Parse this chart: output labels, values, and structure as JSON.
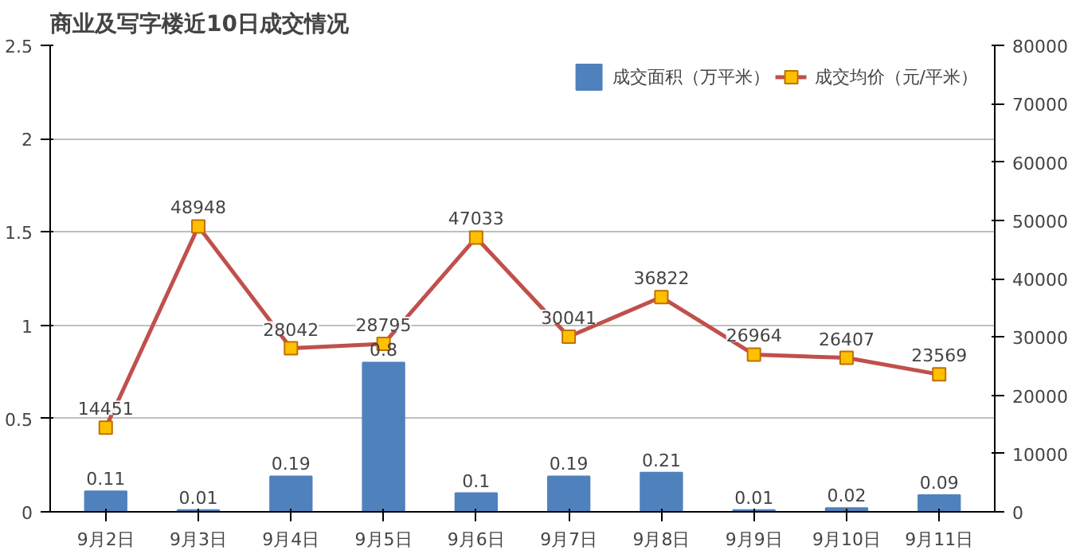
{
  "chart_data": {
    "type": "bar",
    "title": "商业及写字楼近10日成交情况",
    "categories": [
      "9月2日",
      "9月3日",
      "9月4日",
      "9月5日",
      "9月6日",
      "9月7日",
      "9月8日",
      "9月9日",
      "9月10日",
      "9月11日"
    ],
    "series": [
      {
        "name": "成交面积（万平米）",
        "color": "#4f81bd",
        "values": [
          0.11,
          0.01,
          0.19,
          0.8,
          0.1,
          0.19,
          0.21,
          0.01,
          0.02,
          0.09
        ]
      },
      {
        "name": "成交均价（元/平米）",
        "type": "line",
        "axis": "y2",
        "color": "#c0504d",
        "values": [
          14451,
          48948,
          28042,
          28795,
          47033,
          30041,
          36822,
          26964,
          26407,
          23569
        ]
      }
    ],
    "ylim": [
      0,
      2.5
    ],
    "yticks": [
      0,
      0.5,
      1,
      1.5,
      2,
      2.5
    ],
    "y2lim": [
      0,
      80000
    ],
    "y2ticks": [
      0,
      10000,
      20000,
      30000,
      40000,
      50000,
      60000,
      70000,
      80000
    ],
    "grid": "y",
    "legend": "top right",
    "marker": "square",
    "data_labels": true
  }
}
